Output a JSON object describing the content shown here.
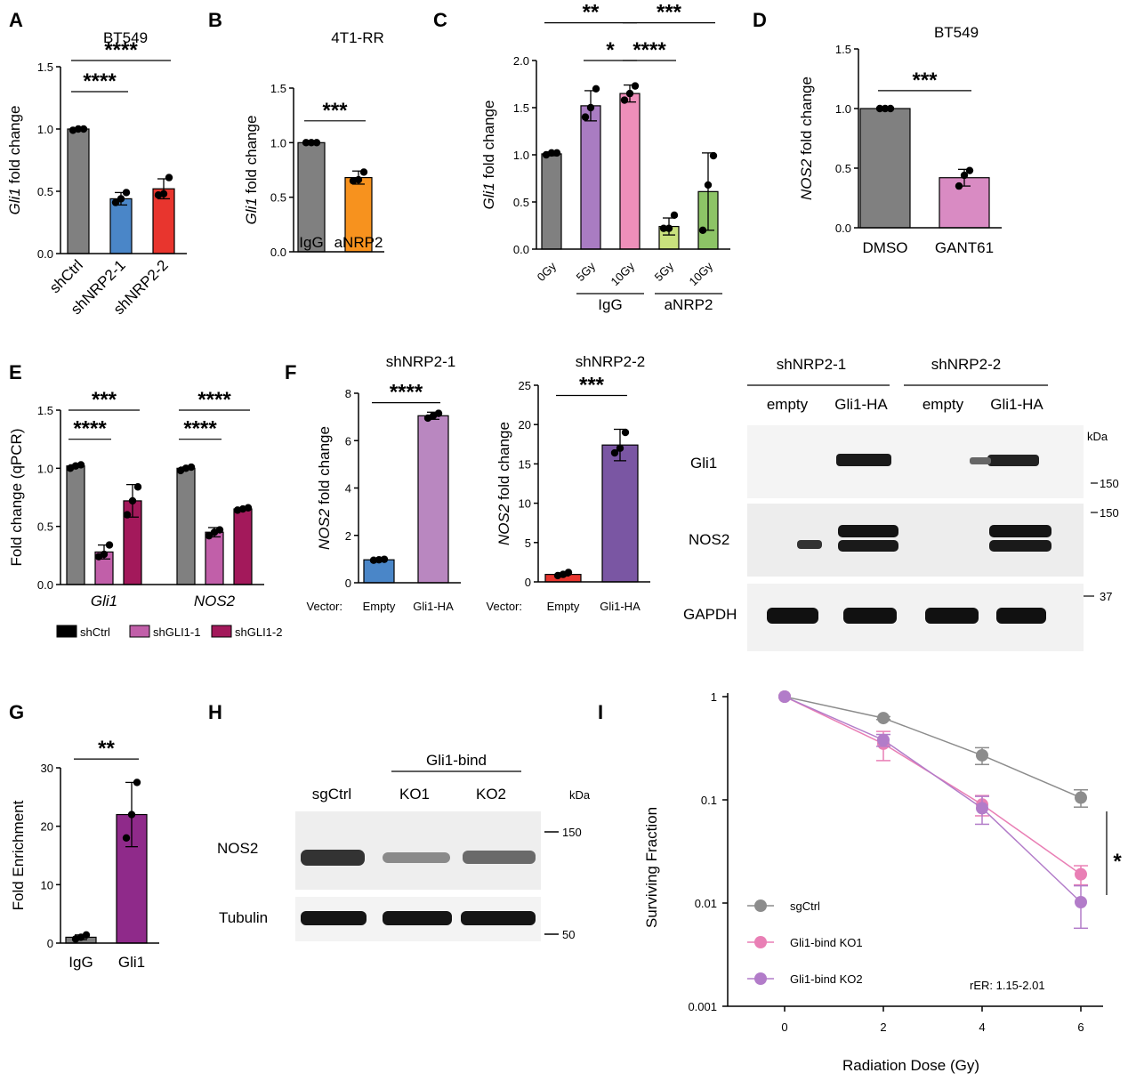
{
  "panels": [
    {
      "id": "A",
      "label": "A",
      "title": "BT549",
      "ylabel_italic": "Gli1",
      "ylabel_rest": " fold change",
      "yticks": [
        "0.0",
        "0.5",
        "1.0",
        "1.5"
      ],
      "ymax": 1.5,
      "categories": [
        "shCtrl",
        "shNRP2-1",
        "shNRP2-2"
      ],
      "rotate": true,
      "values": [
        1.0,
        0.44,
        0.52
      ],
      "err": [
        0.01,
        0.05,
        0.08
      ],
      "points": [
        [
          0.99,
          1.0,
          1.0
        ],
        [
          0.41,
          0.44,
          0.49
        ],
        [
          0.47,
          0.48,
          0.61
        ]
      ],
      "colors": [
        "#808080",
        "#4a86c8",
        "#e8352e"
      ],
      "sig": [
        {
          "from": 0,
          "to": 1,
          "y": 1.3,
          "text": "****"
        },
        {
          "from": 0,
          "to": 2,
          "y": 1.55,
          "text": "****"
        }
      ]
    },
    {
      "id": "B",
      "label": "B",
      "title": "4T1-RR",
      "ylabel_italic": "Gli1",
      "ylabel_rest": " fold change",
      "yticks": [
        "0.0",
        "0.5",
        "1.0",
        "1.5"
      ],
      "ymax": 1.5,
      "categories": [
        "IgG",
        "aNRP2"
      ],
      "rotate": false,
      "values": [
        1.0,
        0.68
      ],
      "err": [
        0.005,
        0.06
      ],
      "points": [
        [
          1.0,
          1.0,
          1.0
        ],
        [
          0.65,
          0.66,
          0.73
        ]
      ],
      "colors": [
        "#808080",
        "#f7921e"
      ],
      "sig": [
        {
          "from": 0,
          "to": 1,
          "y": 1.2,
          "text": "***"
        }
      ]
    },
    {
      "id": "C",
      "label": "C",
      "title": "",
      "ylabel_italic": "Gli1",
      "ylabel_rest": " fold change",
      "yticks": [
        "0.0",
        "0.5",
        "1.0",
        "1.5",
        "2.0"
      ],
      "ymax": 2.0,
      "categories": [
        "0Gy",
        "5Gy",
        "10Gy",
        "5Gy",
        "10Gy"
      ],
      "rotate": true,
      "values": [
        1.01,
        1.52,
        1.65,
        0.24,
        0.61
      ],
      "err": [
        0.02,
        0.16,
        0.09,
        0.09,
        0.41
      ],
      "points": [
        [
          1.0,
          1.02,
          1.02
        ],
        [
          1.4,
          1.5,
          1.7
        ],
        [
          1.58,
          1.65,
          1.73
        ],
        [
          0.22,
          0.22,
          0.36
        ],
        [
          0.2,
          0.68,
          0.99
        ]
      ],
      "colors": [
        "#808080",
        "#a97cc2",
        "#ee8fba",
        "#c9e17d",
        "#8dc466"
      ],
      "groups": [
        {
          "label": "IgG",
          "from": 1,
          "to": 2
        },
        {
          "label": "aNRP2",
          "from": 3,
          "to": 4
        }
      ],
      "sig": [
        {
          "from": 1,
          "to": 2,
          "y": 2.0,
          "text": "*"
        },
        {
          "from": 2,
          "to": 3,
          "y": 2.0,
          "text": "****"
        },
        {
          "from": 0,
          "to": 2,
          "y": 2.4,
          "text": "**"
        },
        {
          "from": 2,
          "to": 4,
          "y": 2.4,
          "text": "***"
        }
      ]
    },
    {
      "id": "D",
      "label": "D",
      "title": "BT549",
      "ylabel_italic": "NOS2",
      "ylabel_rest": " fold change",
      "yticks": [
        "0.0",
        "0.5",
        "1.0",
        "1.5"
      ],
      "ymax": 1.5,
      "categories": [
        "DMSO",
        "GANT61"
      ],
      "rotate": false,
      "values": [
        1.0,
        0.42
      ],
      "err": [
        0.005,
        0.07
      ],
      "points": [
        [
          1.0,
          1.0,
          1.0
        ],
        [
          0.35,
          0.44,
          0.48
        ]
      ],
      "colors": [
        "#808080",
        "#d98bc3"
      ],
      "sig": [
        {
          "from": 0,
          "to": 1,
          "y": 1.15,
          "text": "***"
        }
      ]
    },
    {
      "id": "E",
      "label": "E",
      "title": "",
      "ylabel_italic": "",
      "ylabel_rest": "Fold change (qPCR)",
      "yticks": [
        "0.0",
        "0.5",
        "1.0",
        "1.5"
      ],
      "ymax": 1.5,
      "categories": [
        "",
        "",
        "",
        "",
        "",
        ""
      ],
      "rotate": false,
      "genes": [
        "Gli1",
        "NOS2"
      ],
      "values": [
        1.02,
        0.28,
        0.72,
        1.0,
        0.45,
        0.65
      ],
      "err": [
        0.01,
        0.06,
        0.14,
        0.01,
        0.04,
        0.01
      ],
      "points": [
        [
          1.0,
          1.02,
          1.03
        ],
        [
          0.24,
          0.26,
          0.34
        ],
        [
          0.6,
          0.72,
          0.84
        ],
        [
          0.98,
          1.0,
          1.01
        ],
        [
          0.42,
          0.45,
          0.47
        ],
        [
          0.64,
          0.65,
          0.66
        ]
      ],
      "colors": [
        "#808080",
        "#c15fa9",
        "#a3195b",
        "#808080",
        "#c15fa9",
        "#a3195b"
      ],
      "sig": [
        {
          "from": 0,
          "to": 1,
          "y": 1.25,
          "text": "****"
        },
        {
          "from": 0,
          "to": 2,
          "y": 1.5,
          "text": "***"
        },
        {
          "from": 3,
          "to": 4,
          "y": 1.25,
          "text": "****"
        },
        {
          "from": 3,
          "to": 5,
          "y": 1.5,
          "text": "****"
        }
      ],
      "legend": [
        {
          "label": "shCtrl",
          "color": "#000000"
        },
        {
          "label": "shGLI1-1",
          "color": "#c15fa9"
        },
        {
          "label": "shGLI1-2",
          "color": "#a3195b"
        }
      ]
    },
    {
      "id": "F1",
      "label": "F",
      "title": "shNRP2-1",
      "ylabel_italic": "NOS2",
      "ylabel_rest": " fold change",
      "yticks": [
        "0",
        "2",
        "4",
        "6",
        "8"
      ],
      "ymax": 8,
      "xprefix": "Vector:",
      "categories": [
        "Empty",
        "Gli1-HA"
      ],
      "rotate": false,
      "values": [
        0.97,
        7.05
      ],
      "err": [
        0.04,
        0.15
      ],
      "points": [
        [
          0.95,
          0.97,
          0.99
        ],
        [
          6.95,
          7.05,
          7.15
        ]
      ],
      "colors": [
        "#4a86c8",
        "#b987c0"
      ],
      "sig": [
        {
          "from": 0,
          "to": 1,
          "y": 7.6,
          "text": "****"
        }
      ]
    },
    {
      "id": "F2",
      "label": "",
      "title": "shNRP2-2",
      "ylabel_italic": "NOS2",
      "ylabel_rest": " fold change",
      "yticks": [
        "0",
        "5",
        "10",
        "15",
        "20",
        "25"
      ],
      "ymax": 25,
      "xprefix": "Vector:",
      "categories": [
        "Empty",
        "Gli1-HA"
      ],
      "rotate": false,
      "values": [
        0.95,
        17.4
      ],
      "err": [
        0.2,
        2.0
      ],
      "points": [
        [
          0.8,
          0.95,
          1.2
        ],
        [
          16.4,
          17.0,
          19.0
        ]
      ],
      "colors": [
        "#e8352e",
        "#7a56a3"
      ],
      "sig": [
        {
          "from": 0,
          "to": 1,
          "y": 23.7,
          "text": "***"
        }
      ]
    },
    {
      "id": "G",
      "label": "G",
      "title": "",
      "ylabel_italic": "",
      "ylabel_rest": "Fold Enrichment",
      "yticks": [
        "0",
        "10",
        "20",
        "30"
      ],
      "ymax": 30,
      "categories": [
        "IgG",
        "Gli1"
      ],
      "rotate": false,
      "values": [
        1.0,
        22.0
      ],
      "err": [
        0.4,
        5.5
      ],
      "points": [
        [
          0.7,
          1.0,
          1.4
        ],
        [
          18.0,
          22.0,
          27.5
        ]
      ],
      "colors": [
        "#808080",
        "#8f2a8a"
      ],
      "sig": [
        {
          "from": 0,
          "to": 1,
          "y": 31.5,
          "text": "**"
        }
      ]
    }
  ],
  "blot_f": {
    "groups": [
      "shNRP2-1",
      "shNRP2-2"
    ],
    "lanes": [
      "empty",
      "Gli1-HA",
      "empty",
      "Gli1-HA"
    ],
    "rows": [
      "Gli1",
      "NOS2",
      "GAPDH"
    ],
    "kda_label": "kDa",
    "markers": [
      "150",
      "150",
      "37"
    ]
  },
  "blot_h": {
    "label": "H",
    "group": "Gli1-bind",
    "lanes": [
      "sgCtrl",
      "KO1",
      "KO2"
    ],
    "rows": [
      "NOS2",
      "Tubulin"
    ],
    "kda_label": "kDa",
    "markers": [
      "150",
      "50"
    ]
  },
  "chart_data": {
    "type": "line",
    "label": "I",
    "x": [
      0,
      2,
      4,
      6
    ],
    "xticks": [
      "0",
      "2",
      "4",
      "6"
    ],
    "xlabel": "Radiation Dose (Gy)",
    "ylabel": "Surviving Fraction",
    "yscale": "log",
    "yticks": [
      "0.001",
      "0.01",
      "0.1",
      "1"
    ],
    "ylim": [
      0.001,
      1
    ],
    "series": [
      {
        "name": "sgCtrl",
        "color": "#8c8c8c",
        "values": [
          1.0,
          0.62,
          0.27,
          0.105
        ],
        "err": [
          0.0,
          0.02,
          0.05,
          0.02
        ]
      },
      {
        "name": "Gli1-bind KO1",
        "color": "#e97fb5",
        "values": [
          1.0,
          0.35,
          0.09,
          0.019
        ],
        "err": [
          0.0,
          0.11,
          0.02,
          0.004
        ]
      },
      {
        "name": "Gli1-bind KO2",
        "color": "#b27cc9",
        "values": [
          1.0,
          0.38,
          0.083,
          0.0102
        ],
        "err": [
          0.0,
          0.05,
          0.025,
          0.0045
        ]
      }
    ],
    "annotation": "rER: 1.15-2.01",
    "sig": "*",
    "legend_position": "bottom-left"
  }
}
